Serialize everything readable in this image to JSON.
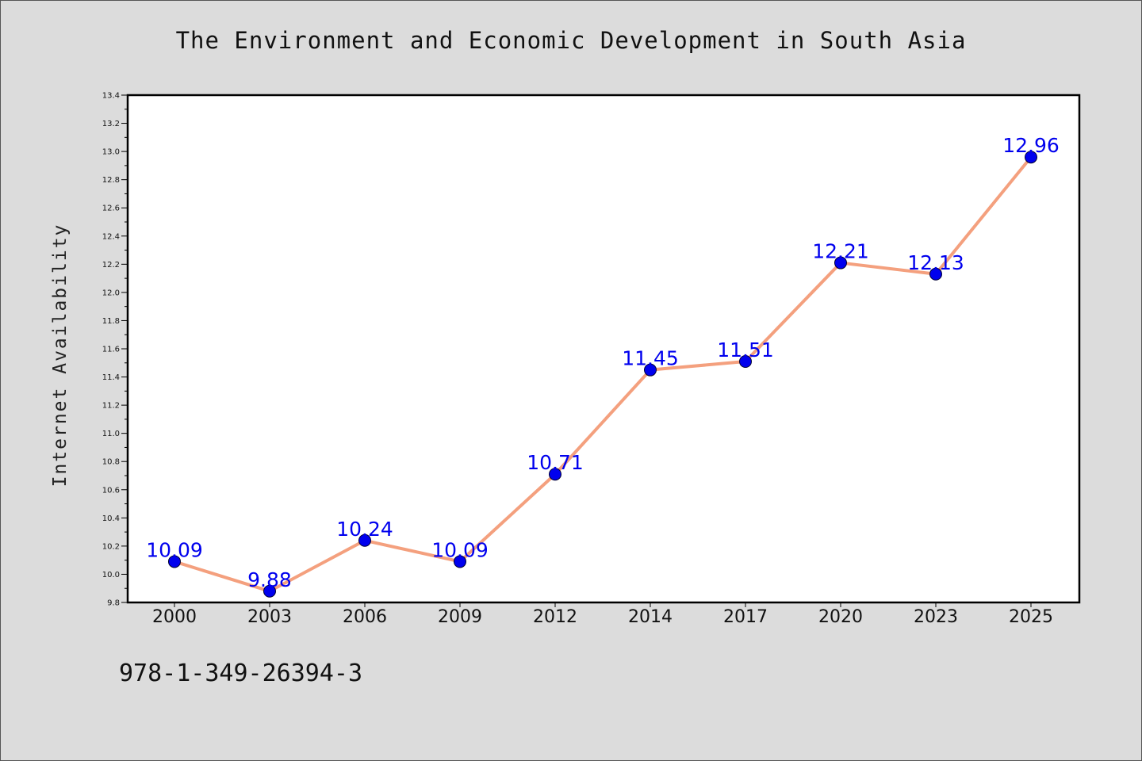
{
  "chart_data": {
    "type": "line",
    "title": "The Environment and Economic Development in South Asia",
    "xlabel": "",
    "ylabel": "Internet Availability",
    "categories": [
      "2000",
      "2003",
      "2006",
      "2009",
      "2012",
      "2014",
      "2017",
      "2020",
      "2023",
      "2025"
    ],
    "series": [
      {
        "values": [
          10.09,
          9.88,
          10.24,
          10.09,
          10.71,
          11.45,
          11.51,
          12.21,
          12.13,
          12.96
        ]
      }
    ],
    "ylim": [
      9.8,
      13.4
    ],
    "yticks": [
      "9.8",
      "10.0",
      "10.2",
      "10.4",
      "10.6",
      "10.8",
      "11.0",
      "11.2",
      "11.4",
      "11.6",
      "11.8",
      "12.0",
      "12.2",
      "12.4",
      "12.6",
      "12.8",
      "13.0",
      "13.2",
      "13.4"
    ],
    "data_labels": [
      "10.09",
      "9.88",
      "10.24",
      "10.09",
      "10.71",
      "11.45",
      "11.51",
      "12.21",
      "12.13",
      "12.96"
    ],
    "grid": false,
    "colors": {
      "line": "#f4a07e",
      "marker": "#0000ee",
      "label": "#0000ee"
    }
  },
  "footer": {
    "isbn": "978-1-349-26394-3"
  }
}
